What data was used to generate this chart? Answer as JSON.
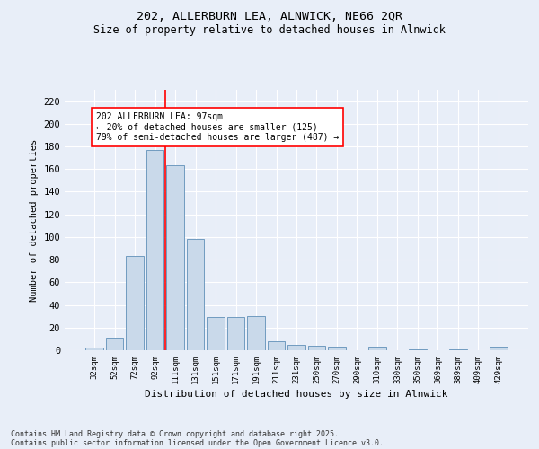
{
  "title1": "202, ALLERBURN LEA, ALNWICK, NE66 2QR",
  "title2": "Size of property relative to detached houses in Alnwick",
  "xlabel": "Distribution of detached houses by size in Alnwick",
  "ylabel": "Number of detached properties",
  "categories": [
    "32sqm",
    "52sqm",
    "72sqm",
    "92sqm",
    "111sqm",
    "131sqm",
    "151sqm",
    "171sqm",
    "191sqm",
    "211sqm",
    "231sqm",
    "250sqm",
    "270sqm",
    "290sqm",
    "310sqm",
    "330sqm",
    "350sqm",
    "369sqm",
    "389sqm",
    "409sqm",
    "429sqm"
  ],
  "values": [
    2,
    11,
    83,
    177,
    163,
    98,
    29,
    29,
    30,
    8,
    5,
    4,
    3,
    0,
    3,
    0,
    1,
    0,
    1,
    0,
    3
  ],
  "bar_color": "#c9d9ea",
  "bar_edge_color": "#6090b8",
  "ylim": [
    0,
    230
  ],
  "yticks": [
    0,
    20,
    40,
    60,
    80,
    100,
    120,
    140,
    160,
    180,
    200,
    220
  ],
  "red_line_index": 3.5,
  "property_label": "202 ALLERBURN LEA: 97sqm",
  "pct_smaller": "20% of detached houses are smaller (125)",
  "pct_larger": "79% of semi-detached houses are larger (487)",
  "footer1": "Contains HM Land Registry data © Crown copyright and database right 2025.",
  "footer2": "Contains public sector information licensed under the Open Government Licence v3.0.",
  "background_color": "#e8eef8",
  "plot_bg_color": "#e8eef8"
}
